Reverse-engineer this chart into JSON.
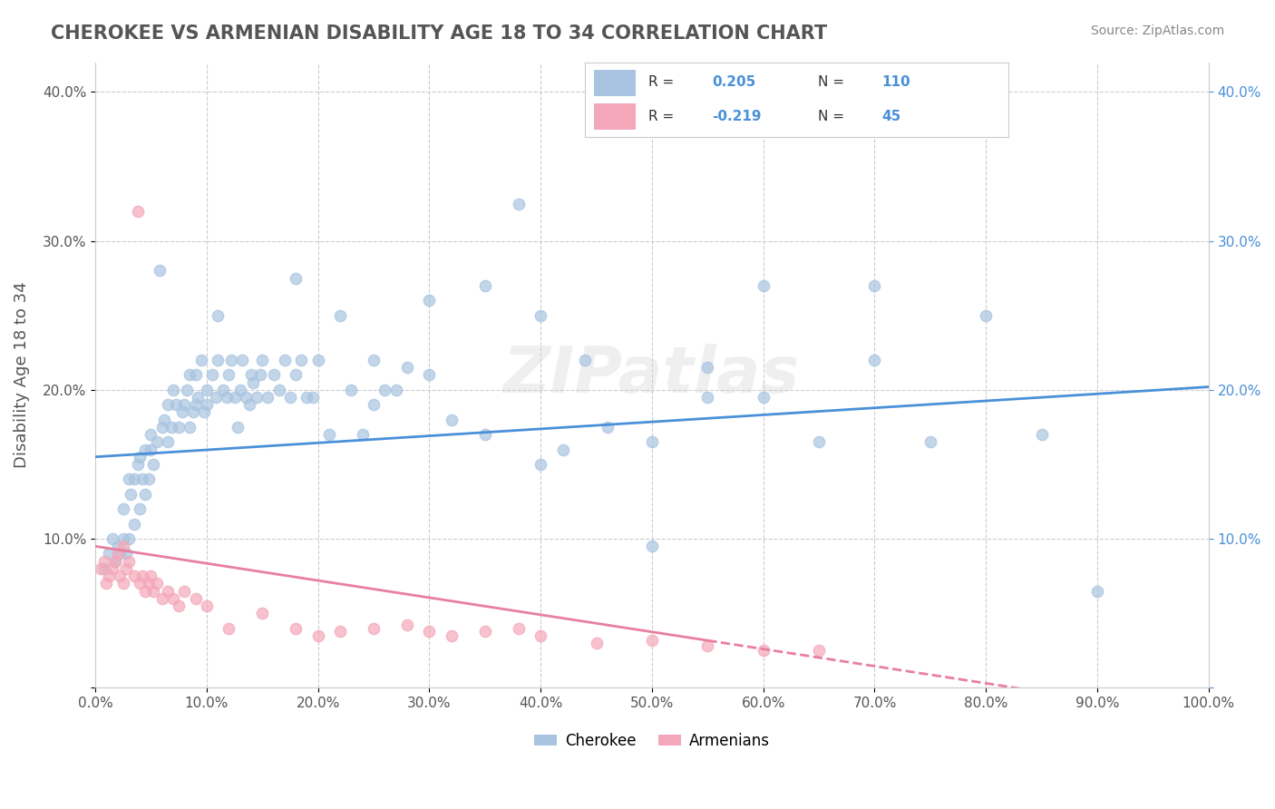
{
  "title": "CHEROKEE VS ARMENIAN DISABILITY AGE 18 TO 34 CORRELATION CHART",
  "source_text": "Source: ZipAtlas.com",
  "ylabel": "Disability Age 18 to 34",
  "xlabel": "",
  "xlim": [
    0.0,
    1.0
  ],
  "ylim": [
    0.0,
    0.42
  ],
  "xticks": [
    0.0,
    0.1,
    0.2,
    0.3,
    0.4,
    0.5,
    0.6,
    0.7,
    0.8,
    0.9,
    1.0
  ],
  "xticklabels": [
    "0.0%",
    "10.0%",
    "20.0%",
    "30.0%",
    "40.0%",
    "50.0%",
    "60.0%",
    "70.0%",
    "80.0%",
    "90.0%",
    "100.0%"
  ],
  "yticks": [
    0.0,
    0.1,
    0.2,
    0.3,
    0.4
  ],
  "yticklabels": [
    "",
    "10.0%",
    "20.0%",
    "30.0%",
    "40.0%"
  ],
  "cherokee_color": "#a8c4e0",
  "armenian_color": "#f4a7b9",
  "cherokee_line_color": "#4a90d9",
  "armenian_line_color": "#e87fa0",
  "cherokee_R": 0.205,
  "cherokee_N": 110,
  "armenian_R": -0.219,
  "armenian_N": 45,
  "cherokee_scatter_x": [
    0.008,
    0.012,
    0.015,
    0.018,
    0.02,
    0.022,
    0.025,
    0.025,
    0.028,
    0.03,
    0.03,
    0.032,
    0.035,
    0.035,
    0.038,
    0.04,
    0.04,
    0.042,
    0.045,
    0.045,
    0.048,
    0.05,
    0.05,
    0.052,
    0.055,
    0.058,
    0.06,
    0.062,
    0.065,
    0.065,
    0.068,
    0.07,
    0.072,
    0.075,
    0.078,
    0.08,
    0.082,
    0.085,
    0.085,
    0.088,
    0.09,
    0.09,
    0.092,
    0.095,
    0.098,
    0.1,
    0.1,
    0.105,
    0.108,
    0.11,
    0.11,
    0.115,
    0.118,
    0.12,
    0.122,
    0.125,
    0.128,
    0.13,
    0.132,
    0.135,
    0.138,
    0.14,
    0.142,
    0.145,
    0.148,
    0.15,
    0.155,
    0.16,
    0.165,
    0.17,
    0.175,
    0.18,
    0.185,
    0.19,
    0.195,
    0.2,
    0.21,
    0.22,
    0.23,
    0.24,
    0.25,
    0.26,
    0.27,
    0.28,
    0.3,
    0.32,
    0.35,
    0.38,
    0.4,
    0.42,
    0.44,
    0.46,
    0.5,
    0.55,
    0.6,
    0.65,
    0.7,
    0.75,
    0.8,
    0.9,
    0.3,
    0.18,
    0.25,
    0.35,
    0.4,
    0.5,
    0.55,
    0.6,
    0.7,
    0.85
  ],
  "cherokee_scatter_y": [
    0.08,
    0.09,
    0.1,
    0.085,
    0.095,
    0.09,
    0.1,
    0.12,
    0.09,
    0.1,
    0.14,
    0.13,
    0.11,
    0.14,
    0.15,
    0.12,
    0.155,
    0.14,
    0.13,
    0.16,
    0.14,
    0.16,
    0.17,
    0.15,
    0.165,
    0.28,
    0.175,
    0.18,
    0.19,
    0.165,
    0.175,
    0.2,
    0.19,
    0.175,
    0.185,
    0.19,
    0.2,
    0.175,
    0.21,
    0.185,
    0.19,
    0.21,
    0.195,
    0.22,
    0.185,
    0.19,
    0.2,
    0.21,
    0.195,
    0.22,
    0.25,
    0.2,
    0.195,
    0.21,
    0.22,
    0.195,
    0.175,
    0.2,
    0.22,
    0.195,
    0.19,
    0.21,
    0.205,
    0.195,
    0.21,
    0.22,
    0.195,
    0.21,
    0.2,
    0.22,
    0.195,
    0.21,
    0.22,
    0.195,
    0.195,
    0.22,
    0.17,
    0.25,
    0.2,
    0.17,
    0.19,
    0.2,
    0.2,
    0.215,
    0.21,
    0.18,
    0.27,
    0.325,
    0.15,
    0.16,
    0.22,
    0.175,
    0.095,
    0.215,
    0.27,
    0.165,
    0.27,
    0.165,
    0.25,
    0.065,
    0.26,
    0.275,
    0.22,
    0.17,
    0.25,
    0.165,
    0.195,
    0.195,
    0.22,
    0.17
  ],
  "armenian_scatter_x": [
    0.005,
    0.008,
    0.01,
    0.012,
    0.015,
    0.018,
    0.02,
    0.022,
    0.025,
    0.025,
    0.028,
    0.03,
    0.035,
    0.038,
    0.04,
    0.042,
    0.045,
    0.048,
    0.05,
    0.052,
    0.055,
    0.06,
    0.065,
    0.07,
    0.075,
    0.08,
    0.09,
    0.1,
    0.12,
    0.15,
    0.18,
    0.2,
    0.22,
    0.25,
    0.28,
    0.3,
    0.32,
    0.35,
    0.38,
    0.4,
    0.45,
    0.5,
    0.55,
    0.6,
    0.65
  ],
  "armenian_scatter_y": [
    0.08,
    0.085,
    0.07,
    0.075,
    0.08,
    0.085,
    0.09,
    0.075,
    0.07,
    0.095,
    0.08,
    0.085,
    0.075,
    0.32,
    0.07,
    0.075,
    0.065,
    0.07,
    0.075,
    0.065,
    0.07,
    0.06,
    0.065,
    0.06,
    0.055,
    0.065,
    0.06,
    0.055,
    0.04,
    0.05,
    0.04,
    0.035,
    0.038,
    0.04,
    0.042,
    0.038,
    0.035,
    0.038,
    0.04,
    0.035,
    0.03,
    0.032,
    0.028,
    0.025,
    0.025
  ],
  "watermark": "ZIPatlas",
  "background_color": "#ffffff",
  "grid_color": "#cccccc"
}
